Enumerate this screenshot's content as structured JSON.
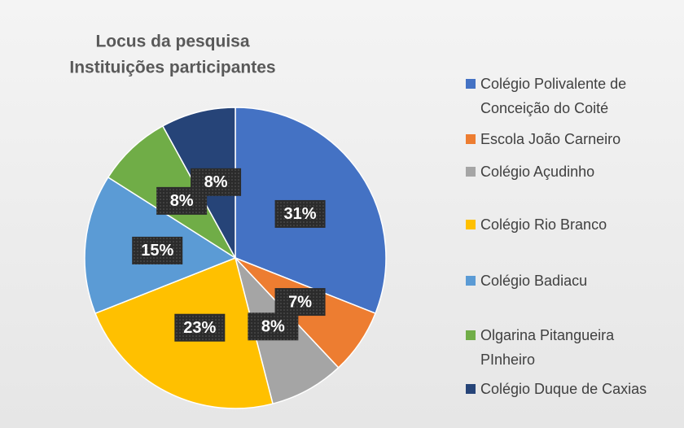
{
  "chart_data": {
    "type": "pie",
    "title": "Locus da pesquisa",
    "subtitle": "Instituições participantes",
    "categories": [
      "Colégio Polivalente de Conceição do Coité",
      "Escola João Carneiro",
      "Colégio Açudinho",
      "Colégio Rio Branco",
      "Colégio Badiacu",
      "Olgarina Pitangueira PInheiro",
      "Colégio Duque de Caxias"
    ],
    "values": [
      31,
      7,
      8,
      23,
      15,
      8,
      8
    ],
    "value_labels": [
      "31%",
      "7%",
      "8%",
      "23%",
      "15%",
      "8%",
      "8%"
    ],
    "colors": [
      "#4472c4",
      "#ed7d31",
      "#a5a5a5",
      "#ffc000",
      "#5b9bd5",
      "#70ad47",
      "#264478"
    ],
    "legend": "right"
  }
}
